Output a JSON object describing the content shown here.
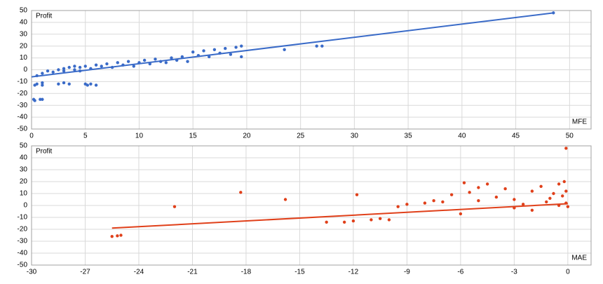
{
  "chart_data": [
    {
      "type": "scatter",
      "y_label": "Profit",
      "x_label": "MFE",
      "color": "#3a6bc8",
      "xlim": [
        0,
        52
      ],
      "xticks": [
        0,
        5,
        10,
        15,
        20,
        25,
        30,
        35,
        40,
        45,
        50
      ],
      "ylim": [
        -50,
        50
      ],
      "yticks": [
        -50,
        -40,
        -30,
        -20,
        -10,
        0,
        10,
        20,
        30,
        40,
        50
      ],
      "grid": true,
      "x": [
        0.2,
        0.3,
        0.8,
        1,
        0.3,
        0.5,
        1,
        1,
        0.5,
        1,
        1.5,
        2,
        2.5,
        3,
        3,
        3.5,
        4,
        4,
        4.5,
        4.5,
        5,
        5.5,
        5.2,
        6,
        3.5,
        3,
        2.5,
        5,
        5.5,
        6,
        6.5,
        7,
        7.5,
        8,
        8.5,
        9,
        9.5,
        10,
        10.5,
        11,
        11.5,
        12,
        12.5,
        13,
        13.5,
        14,
        14.5,
        15,
        15.5,
        16,
        16.5,
        17,
        17.5,
        18,
        18.5,
        19,
        19.5,
        19.5,
        23.5,
        26.5,
        27,
        48.5
      ],
      "values": [
        -25,
        -26,
        -25,
        -25,
        -13,
        -12,
        -13,
        -11,
        -5,
        -3,
        -1,
        -2,
        0,
        -1,
        1,
        2,
        0,
        3,
        -1,
        2,
        -12,
        -12,
        -13,
        -13,
        -12,
        -11,
        -12,
        3,
        1,
        4,
        3,
        5,
        2,
        6,
        4,
        7,
        3,
        6,
        8,
        5,
        9,
        7,
        6,
        10,
        8,
        11,
        7,
        15,
        12,
        16,
        11,
        17,
        14,
        18,
        13,
        19,
        20,
        11,
        17,
        20,
        20,
        48
      ],
      "trendline": {
        "x": [
          0,
          48.5
        ],
        "values": [
          -6,
          48
        ]
      }
    },
    {
      "type": "scatter",
      "y_label": "Profit",
      "x_label": "MAE",
      "color": "#e0401a",
      "xlim": [
        -30,
        1.3
      ],
      "xticks": [
        -30,
        -27,
        -24,
        -21,
        -18,
        -15,
        -12,
        -9,
        -6,
        -3,
        0
      ],
      "ylim": [
        -50,
        50
      ],
      "yticks": [
        -50,
        -40,
        -30,
        -20,
        -10,
        0,
        10,
        20,
        30,
        40,
        50
      ],
      "grid": true,
      "x": [
        -25.5,
        -25.2,
        -25,
        -22,
        -18.3,
        -15.8,
        -13.5,
        -12.5,
        -12,
        -11.8,
        -11,
        -10.5,
        -10,
        -9.5,
        -9,
        -8,
        -7.5,
        -7,
        -6.5,
        -6,
        -5.8,
        -5.5,
        -5,
        -5,
        -4.5,
        -4,
        -3.5,
        -3,
        -3,
        -2.5,
        -2,
        -2,
        -1.5,
        -1.2,
        -1,
        -0.8,
        -0.5,
        -0.5,
        -0.3,
        -0.2,
        -0.1,
        -0.1,
        -0.1,
        0
      ],
      "values": [
        -26,
        -25.5,
        -25,
        -1,
        11,
        5,
        -14,
        -14,
        -13,
        9,
        -12,
        -11,
        -12,
        -1,
        1,
        2,
        4,
        3,
        9,
        -7,
        19,
        11,
        15,
        4,
        18,
        7,
        14,
        5,
        -2,
        1,
        12,
        -4,
        16,
        3,
        6,
        10,
        0,
        18,
        8,
        20,
        48,
        2,
        12,
        -1
      ],
      "trendline": {
        "x": [
          -25.5,
          0
        ],
        "values": [
          -19,
          1.5
        ]
      }
    }
  ]
}
